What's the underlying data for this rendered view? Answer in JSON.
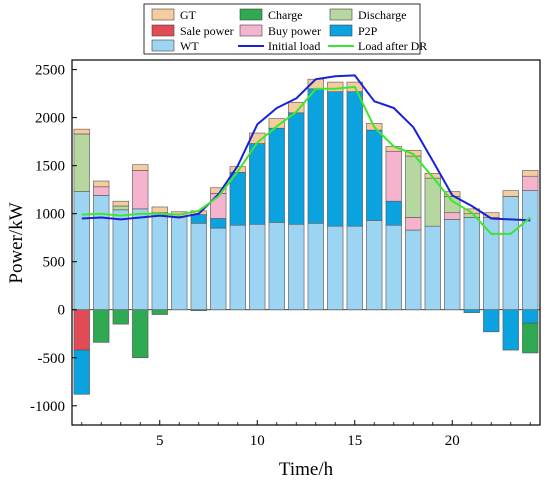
{
  "chart_data": {
    "type": "bar",
    "subtype": "stacked-bar-with-lines",
    "title": "",
    "xlabel": "Time/h",
    "ylabel": "Power/kW",
    "xlim": [
      0.5,
      24.5
    ],
    "ylim": [
      -1200,
      2600
    ],
    "xticks": [
      5,
      10,
      15,
      20
    ],
    "yticks": [
      -1000,
      -500,
      0,
      500,
      1000,
      1500,
      2000,
      2500
    ],
    "grid": false,
    "legend_position": "top",
    "x": [
      1,
      2,
      3,
      4,
      5,
      6,
      7,
      8,
      9,
      10,
      11,
      12,
      13,
      14,
      15,
      16,
      17,
      18,
      19,
      20,
      21,
      22,
      23,
      24
    ],
    "bar_series": [
      {
        "key": "wt",
        "name": "WT",
        "color": "#9dd4f2",
        "values": [
          1230,
          1190,
          1040,
          1050,
          1010,
          970,
          900,
          850,
          880,
          890,
          910,
          890,
          900,
          870,
          870,
          930,
          880,
          830,
          870,
          940,
          960,
          960,
          1180,
          1240
        ]
      },
      {
        "key": "p2p",
        "name": "P2P",
        "color": "#0aa3e0",
        "values": [
          0,
          0,
          0,
          0,
          0,
          0,
          90,
          100,
          550,
          840,
          980,
          1160,
          1400,
          1400,
          1400,
          940,
          250,
          0,
          0,
          0,
          0,
          0,
          0,
          0
        ]
      },
      {
        "key": "buy",
        "name": "Buy power",
        "color": "#f6b3cd",
        "values": [
          0,
          90,
          0,
          400,
          0,
          0,
          0,
          260,
          0,
          0,
          0,
          0,
          0,
          0,
          0,
          0,
          520,
          130,
          0,
          70,
          0,
          0,
          0,
          150
        ]
      },
      {
        "key": "discharge",
        "name": "Discharge",
        "color": "#b6d7a0",
        "values": [
          600,
          0,
          40,
          0,
          0,
          0,
          0,
          0,
          0,
          0,
          0,
          0,
          0,
          0,
          0,
          0,
          0,
          640,
          500,
          170,
          40,
          0,
          0,
          0
        ]
      },
      {
        "key": "gt",
        "name": "GT",
        "color": "#f5cba0",
        "values": [
          50,
          60,
          50,
          60,
          60,
          50,
          40,
          60,
          60,
          110,
          100,
          110,
          100,
          100,
          100,
          70,
          50,
          60,
          50,
          50,
          50,
          50,
          60,
          60
        ]
      },
      {
        "key": "sale",
        "name": "Sale power",
        "color": "#e04b55",
        "values": [
          -420,
          0,
          0,
          0,
          0,
          0,
          0,
          0,
          0,
          0,
          0,
          0,
          0,
          0,
          0,
          0,
          0,
          0,
          0,
          0,
          0,
          0,
          0,
          0
        ]
      },
      {
        "key": "p2p_neg",
        "name": "",
        "color": "#0aa3e0",
        "values": [
          -460,
          0,
          0,
          0,
          0,
          0,
          0,
          0,
          0,
          0,
          0,
          0,
          0,
          0,
          0,
          0,
          0,
          0,
          0,
          0,
          -30,
          -230,
          -420,
          -140
        ]
      },
      {
        "key": "charge",
        "name": "Charge",
        "color": "#2faa52",
        "values": [
          0,
          -340,
          -150,
          -500,
          -50,
          0,
          -10,
          0,
          0,
          0,
          0,
          0,
          0,
          0,
          0,
          0,
          0,
          0,
          0,
          0,
          0,
          0,
          0,
          -310
        ]
      }
    ],
    "line_series": [
      {
        "name": "Initial load",
        "color": "#1a22d8",
        "values": [
          950,
          960,
          940,
          960,
          980,
          960,
          1000,
          1200,
          1500,
          1930,
          2100,
          2200,
          2400,
          2430,
          2440,
          2170,
          2100,
          1900,
          1550,
          1190,
          1080,
          950,
          940,
          930
        ]
      },
      {
        "name": "Load after DR",
        "color": "#3ee62f",
        "values": [
          990,
          1000,
          980,
          1000,
          1000,
          990,
          1030,
          1180,
          1440,
          1740,
          1910,
          2060,
          2300,
          2300,
          2320,
          1900,
          1700,
          1620,
          1380,
          1130,
          1010,
          790,
          790,
          960
        ]
      }
    ],
    "legend": [
      {
        "label": "GT",
        "kind": "box",
        "color": "#f5cba0"
      },
      {
        "label": "Charge",
        "kind": "box",
        "color": "#2faa52"
      },
      {
        "label": "Discharge",
        "kind": "box",
        "color": "#b6d7a0"
      },
      {
        "label": "Sale power",
        "kind": "box",
        "color": "#e04b55"
      },
      {
        "label": "Buy power",
        "kind": "box",
        "color": "#f6b3cd"
      },
      {
        "label": "P2P",
        "kind": "box",
        "color": "#0aa3e0"
      },
      {
        "label": "WT",
        "kind": "box",
        "color": "#9dd4f2"
      },
      {
        "label": "Initial load",
        "kind": "line",
        "color": "#1a22d8"
      },
      {
        "label": "Load after DR",
        "kind": "line",
        "color": "#3ee62f"
      }
    ]
  }
}
